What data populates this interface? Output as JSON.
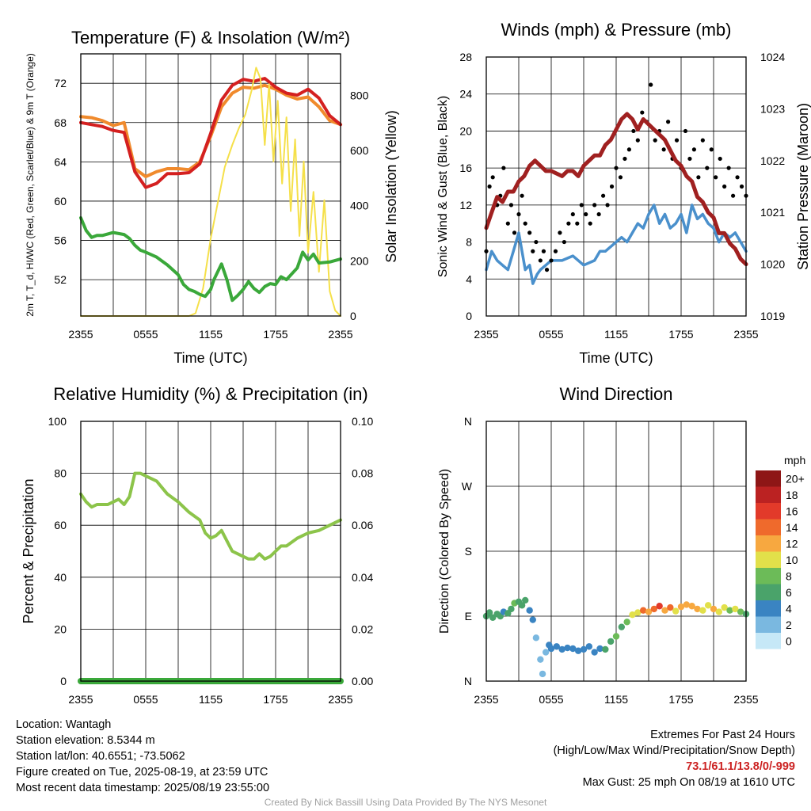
{
  "chart_data": [
    {
      "type": "line",
      "title": "Temperature (F) & Insolation (W/m²)",
      "xlabel": "Time (UTC)",
      "ylabel_left": "2m T, T_d, HI/WC (Red, Green, Scarlet/Blue) & 9m T (Orange)",
      "ylabel_right": "Solar Insolation (Yellow)",
      "x_ticks": [
        "2355",
        "0555",
        "1155",
        "1755",
        "2355"
      ],
      "x_range_hours": [
        0,
        24
      ],
      "ylim_left": [
        48.3,
        75
      ],
      "ylim_right": [
        0,
        950
      ],
      "y_ticks_left": [
        52,
        56,
        60,
        64,
        68,
        72
      ],
      "y_ticks_right": [
        0,
        200,
        400,
        600,
        800
      ],
      "series": [
        {
          "name": "9m T",
          "color": "#f08a2c",
          "axis": "left",
          "x": [
            0,
            1,
            2,
            3,
            4,
            5,
            6,
            7,
            8,
            9,
            10,
            11,
            12,
            13,
            14,
            15,
            16,
            17,
            18,
            19,
            20,
            21,
            22,
            23,
            24
          ],
          "values": [
            68.6,
            68.5,
            68.2,
            67.7,
            68.0,
            63.3,
            62.5,
            63.0,
            63.3,
            63.3,
            63.2,
            64.0,
            66.6,
            69.6,
            71.0,
            71.6,
            71.5,
            71.8,
            71.4,
            70.8,
            70.4,
            70.6,
            69.6,
            68.2,
            67.8
          ]
        },
        {
          "name": "2m T",
          "color": "#d42020",
          "axis": "left",
          "x": [
            0,
            1,
            2,
            3,
            4,
            5,
            6,
            7,
            8,
            9,
            10,
            11,
            12,
            13,
            14,
            15,
            16,
            17,
            18,
            19,
            20,
            21,
            22,
            23,
            24
          ],
          "values": [
            68.0,
            67.8,
            67.6,
            67.2,
            67.0,
            63.0,
            61.4,
            61.8,
            62.8,
            62.8,
            62.9,
            63.8,
            66.9,
            70.3,
            71.8,
            72.4,
            72.2,
            72.5,
            71.6,
            71.0,
            70.8,
            71.4,
            70.5,
            68.7,
            67.8
          ]
        },
        {
          "name": "Solar Insolation",
          "color": "#f5e04a",
          "axis": "right",
          "x": [
            0,
            6.2,
            6.8,
            7.5,
            8.4,
            9.0,
            9.5,
            10.0,
            10.6,
            11.3,
            12.0,
            12.7,
            13.3,
            14.0,
            14.6,
            15.2,
            15.8,
            16.2,
            16.6,
            17.0,
            17.4,
            17.8,
            18.2,
            18.6,
            19.0,
            19.4,
            19.8,
            20.2,
            20.6,
            21.0,
            21.5,
            22.0,
            22.5,
            23.0,
            23.5,
            24
          ],
          "values": [
            0,
            0,
            0,
            0,
            0,
            0,
            0,
            0,
            10,
            100,
            280,
            420,
            540,
            620,
            680,
            730,
            820,
            900,
            860,
            620,
            840,
            560,
            780,
            480,
            720,
            380,
            640,
            290,
            560,
            230,
            450,
            160,
            420,
            90,
            20,
            0
          ]
        },
        {
          "name": "2m T_d",
          "color": "#3aa83a",
          "axis": "left",
          "x": [
            0,
            0.5,
            1,
            1.5,
            2,
            3,
            4,
            4.5,
            5,
            5.5,
            6,
            7,
            8,
            9,
            9.5,
            10,
            10.5,
            11,
            11.5,
            12,
            12.3,
            13,
            13.5,
            14,
            14.5,
            15,
            15.5,
            16,
            16.5,
            17,
            17.5,
            18,
            18.5,
            19,
            20,
            20.5,
            21,
            21.5,
            22,
            23,
            24
          ],
          "values": [
            58.3,
            57.0,
            56.3,
            56.5,
            56.5,
            56.8,
            56.6,
            56.2,
            55.5,
            55.0,
            54.8,
            54.3,
            53.5,
            52.5,
            51.5,
            51.0,
            50.8,
            50.5,
            50.3,
            51.0,
            52.0,
            53.6,
            52.0,
            49.9,
            50.4,
            51.0,
            51.8,
            51.1,
            50.7,
            51.3,
            51.6,
            51.5,
            52.3,
            52.0,
            53.2,
            54.8,
            54.0,
            54.6,
            53.7,
            53.8,
            54.1
          ]
        }
      ]
    },
    {
      "type": "line",
      "title": "Winds (mph) & Pressure (mb)",
      "xlabel": "Time (UTC)",
      "ylabel_left": "Sonic Wind & Gust (Blue, Black)",
      "ylabel_right": "Station Pressure (Maroon)",
      "x_ticks": [
        "2355",
        "0555",
        "1155",
        "1755",
        "2355"
      ],
      "x_range_hours": [
        0,
        24
      ],
      "ylim_left": [
        0,
        28
      ],
      "ylim_right": [
        1019,
        1024
      ],
      "y_ticks_left": [
        0,
        4,
        8,
        12,
        16,
        20,
        24,
        28
      ],
      "y_ticks_right": [
        1019,
        1020,
        1021,
        1022,
        1023,
        1024
      ],
      "series": [
        {
          "name": "Sonic Wind",
          "color": "#4a90cc",
          "axis": "left",
          "x": [
            0,
            0.5,
            1,
            1.5,
            2,
            2.5,
            3,
            3.3,
            3.6,
            4,
            4.3,
            4.7,
            5,
            5.5,
            6,
            7,
            8,
            9,
            10,
            10.5,
            11,
            12,
            12.5,
            13,
            13.5,
            14,
            14.5,
            15,
            15.5,
            16,
            16.5,
            17,
            17.5,
            18,
            18.5,
            19,
            19.5,
            20,
            20.5,
            21,
            21.5,
            22,
            22.5,
            23,
            23.5,
            24
          ],
          "values": [
            5,
            7,
            6,
            5.5,
            5,
            7,
            9,
            7,
            5,
            5.5,
            3.5,
            4.5,
            5,
            5.5,
            6,
            6,
            6.5,
            5.5,
            6,
            7,
            7,
            8,
            8.5,
            8,
            9,
            10,
            9.5,
            11,
            12,
            10,
            11,
            9.5,
            10,
            11,
            9,
            12,
            10.5,
            11,
            10,
            9.5,
            8,
            9,
            8.5,
            9,
            8,
            7
          ]
        },
        {
          "name": "Station Pressure",
          "color": "#a02020",
          "axis": "right",
          "x": [
            0,
            0.5,
            1,
            1.5,
            2,
            2.5,
            3,
            3.5,
            4,
            4.5,
            5,
            5.5,
            6,
            7,
            7.5,
            8,
            8.5,
            9,
            9.5,
            10,
            10.5,
            11,
            11.5,
            12,
            12.5,
            13,
            13.5,
            14,
            14.5,
            15,
            15.5,
            16,
            16.5,
            17,
            17.5,
            18,
            18.5,
            19,
            19.5,
            20,
            20.5,
            21,
            21.5,
            22,
            22.5,
            23,
            23.5,
            24
          ],
          "values": [
            1020.7,
            1021.0,
            1021.3,
            1021.2,
            1021.4,
            1021.4,
            1021.6,
            1021.7,
            1021.9,
            1022.0,
            1021.9,
            1021.8,
            1021.8,
            1021.7,
            1021.8,
            1021.8,
            1021.7,
            1021.9,
            1022.0,
            1022.1,
            1022.1,
            1022.3,
            1022.4,
            1022.6,
            1022.8,
            1022.9,
            1022.8,
            1022.6,
            1022.8,
            1022.7,
            1022.6,
            1022.5,
            1022.4,
            1022.2,
            1022.0,
            1021.9,
            1021.7,
            1021.6,
            1021.3,
            1021.2,
            1021.0,
            1020.9,
            1020.6,
            1020.6,
            1020.4,
            1020.3,
            1020.1,
            1020.0
          ]
        }
      ],
      "gust_points": {
        "name": "Gust",
        "color": "#000000",
        "x": [
          0,
          0.3,
          0.6,
          1,
          1.3,
          1.6,
          2,
          2.3,
          2.6,
          3,
          3.3,
          3.6,
          4,
          4.3,
          4.6,
          5,
          5.3,
          5.6,
          6,
          6.4,
          6.8,
          7.2,
          7.6,
          8,
          8.4,
          8.8,
          9.2,
          9.6,
          10,
          10.4,
          10.8,
          11.2,
          11.6,
          12,
          12.4,
          12.8,
          13.2,
          13.6,
          14,
          14.4,
          14.8,
          15.2,
          15.6,
          16,
          16.4,
          16.8,
          17.2,
          17.6,
          18,
          18.4,
          18.8,
          19.2,
          19.6,
          20,
          20.4,
          20.8,
          21.2,
          21.6,
          22,
          22.4,
          22.8,
          23.2,
          23.6,
          24
        ],
        "values": [
          7,
          14,
          15,
          12,
          13,
          16,
          10,
          12,
          9,
          11,
          13,
          10,
          9,
          7,
          8,
          6,
          7,
          5,
          6,
          7,
          9,
          8,
          10,
          11,
          10,
          12,
          11,
          10,
          12,
          11,
          13,
          12,
          14,
          16,
          15,
          17,
          18,
          20,
          19,
          22,
          21,
          25,
          19,
          20,
          18,
          21,
          17,
          19,
          16,
          20,
          17,
          18,
          15,
          19,
          16,
          18,
          15,
          17,
          14,
          16,
          13,
          15,
          14,
          13
        ]
      }
    },
    {
      "type": "line",
      "title": "Relative Humidity (%) & Precipitation (in)",
      "ylabel_left": "Percent & Precipitation",
      "x_ticks": [
        "2355",
        "0555",
        "1155",
        "1755",
        "2355"
      ],
      "x_range_hours": [
        0,
        24
      ],
      "ylim_left": [
        0,
        100
      ],
      "ylim_right": [
        0,
        0.1
      ],
      "y_ticks_left": [
        0,
        20,
        40,
        60,
        80,
        100
      ],
      "y_ticks_right": [
        "0.00",
        "0.02",
        "0.04",
        "0.06",
        "0.08",
        "0.10"
      ],
      "series": [
        {
          "name": "Relative Humidity",
          "color": "#8cc44a",
          "axis": "left",
          "x": [
            0,
            0.5,
            1,
            1.5,
            2,
            2.5,
            3,
            3.5,
            4,
            4.5,
            5,
            5.5,
            6,
            7,
            8,
            9,
            10,
            11,
            11.5,
            12,
            12.5,
            13,
            13.5,
            14,
            14.5,
            15,
            15.5,
            16,
            16.5,
            17,
            17.5,
            18,
            18.5,
            19,
            20,
            21,
            22,
            23,
            24
          ],
          "values": [
            72,
            69,
            67,
            68,
            68,
            68,
            69,
            70,
            68,
            71,
            80,
            80,
            79,
            77,
            72,
            69,
            65,
            62,
            57,
            55,
            56,
            58,
            54,
            50,
            49,
            48,
            47,
            47,
            49,
            47,
            48,
            50,
            52,
            52,
            55,
            57,
            58,
            60,
            62
          ]
        },
        {
          "name": "Precipitation",
          "color": "#3aa83a",
          "axis": "right",
          "x": [
            0,
            24
          ],
          "values": [
            0,
            0
          ]
        }
      ]
    },
    {
      "type": "scatter",
      "title": "Wind Direction",
      "ylabel": "Direction (Colored By Speed)",
      "x_ticks": [
        "2355",
        "0555",
        "1155",
        "1755",
        "2355"
      ],
      "x_range_hours": [
        0,
        24
      ],
      "y_ticks": [
        "N",
        "E",
        "S",
        "W",
        "N"
      ],
      "ylim_degrees": [
        0,
        360
      ],
      "colorbar": {
        "unit": "mph",
        "labels": [
          "0",
          "2",
          "4",
          "6",
          "8",
          "10",
          "12",
          "14",
          "16",
          "18",
          "20+"
        ],
        "colors": [
          "#c6e8f7",
          "#7ab8e0",
          "#3a84c2",
          "#4aa36a",
          "#6cbb58",
          "#e2e04a",
          "#f7a840",
          "#ef6a2c",
          "#e23a2a",
          "#bb2222",
          "#8e1616"
        ]
      },
      "points": {
        "x": [
          0,
          0.3,
          0.6,
          1,
          1.3,
          1.6,
          2,
          2.3,
          2.6,
          3,
          3.3,
          3.6,
          4,
          4.3,
          4.6,
          5,
          5.2,
          5.5,
          5.8,
          6,
          6.5,
          7,
          7.5,
          8,
          8.5,
          9,
          9.5,
          10,
          10.5,
          11,
          11.5,
          12,
          12.5,
          13,
          13.5,
          14,
          14.5,
          15,
          15.5,
          16,
          16.5,
          17,
          17.5,
          18,
          18.5,
          19,
          19.5,
          20,
          20.5,
          21,
          21.5,
          22,
          22.5,
          23,
          23.5,
          24
        ],
        "degrees": [
          90,
          95,
          88,
          93,
          90,
          96,
          94,
          100,
          108,
          110,
          105,
          112,
          98,
          85,
          60,
          30,
          10,
          40,
          50,
          45,
          48,
          44,
          46,
          45,
          42,
          44,
          48,
          40,
          45,
          44,
          55,
          62,
          75,
          82,
          92,
          95,
          98,
          96,
          100,
          104,
          98,
          102,
          97,
          103,
          106,
          104,
          100,
          98,
          105,
          100,
          96,
          102,
          98,
          100,
          96,
          93
        ],
        "speeds": [
          6,
          7,
          6,
          7,
          6,
          5,
          6,
          7,
          8,
          6,
          7,
          6,
          5,
          4,
          3,
          3,
          2,
          3,
          4,
          4,
          4,
          4,
          5,
          4,
          5,
          4,
          4,
          5,
          4,
          6,
          7,
          8,
          7,
          8,
          10,
          11,
          14,
          12,
          15,
          16,
          12,
          14,
          11,
          13,
          12,
          12,
          13,
          10,
          11,
          12,
          10,
          11,
          9,
          10,
          8,
          7
        ]
      }
    }
  ],
  "info": {
    "location": "Location: Wantagh",
    "elevation": "Station elevation: 8.5344 m",
    "latlon": "Station lat/lon: 40.6551; -73.5062",
    "created": "Figure created on Tue, 2025-08-19, at 23:59 UTC",
    "recent": "Most recent data timestamp: 2025/08/19 23:55:00"
  },
  "extremes": {
    "title": "Extremes For Past 24 Hours",
    "subtitle": "(High/Low/Max Wind/Precipitation/Snow Depth)",
    "values": "73.1/61.1/13.8/0/-999",
    "gust": "Max Gust: 25 mph On 08/19 at 1610 UTC"
  },
  "credit": "Created By Nick Bassill Using Data Provided By The NYS Mesonet"
}
